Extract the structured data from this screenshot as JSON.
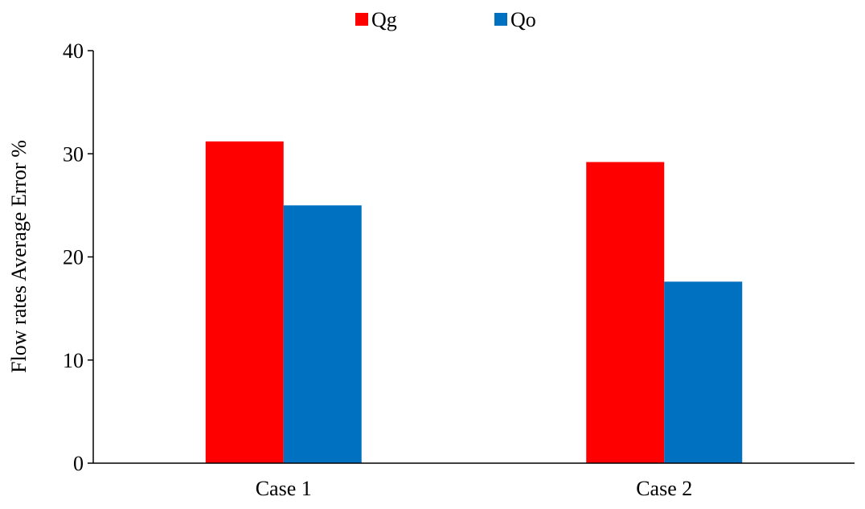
{
  "chart_data": {
    "type": "bar",
    "categories": [
      "Case 1",
      "Case 2"
    ],
    "series": [
      {
        "name": "Qg",
        "values": [
          31.2,
          29.2
        ],
        "color": "#FF0000"
      },
      {
        "name": "Qo",
        "values": [
          25.0,
          17.6
        ],
        "color": "#0070C0"
      }
    ],
    "xlabel": "",
    "ylabel": "Flow rates Average Error %",
    "ylim": [
      0,
      40
    ],
    "yticks": [
      0,
      10,
      20,
      30,
      40
    ],
    "grid": false,
    "legend_position": "top-center"
  }
}
